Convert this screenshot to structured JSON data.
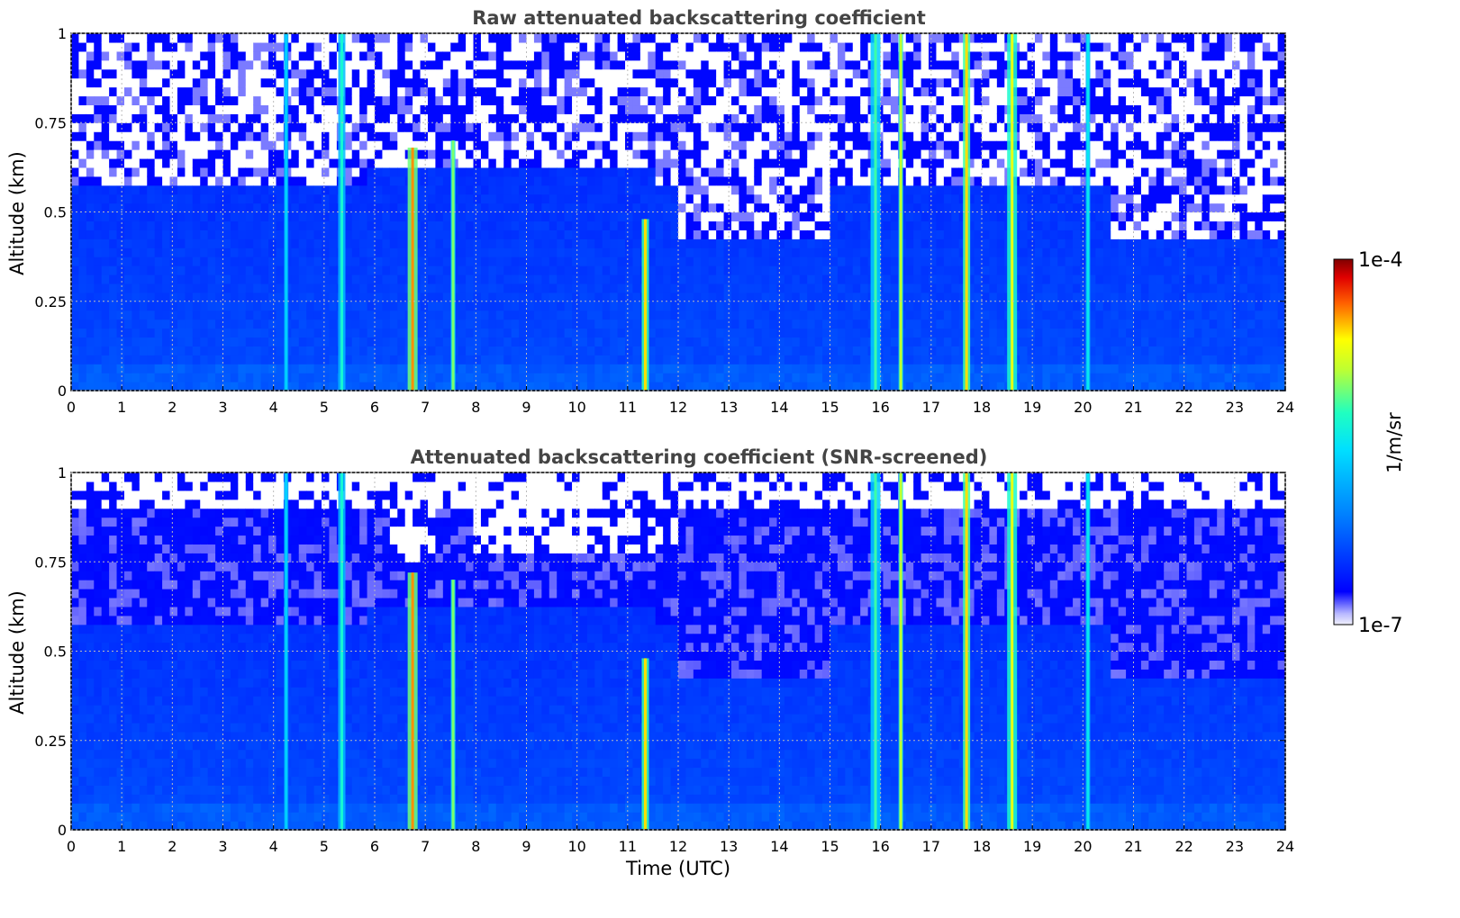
{
  "chart_data": [
    {
      "type": "heatmap",
      "title": "Raw attenuated backscattering coefficient",
      "xlabel": "",
      "ylabel": "Altitude (km)",
      "xlim": [
        0,
        24
      ],
      "ylim": [
        0,
        1
      ],
      "x_ticks": [
        "0",
        "1",
        "2",
        "3",
        "4",
        "5",
        "6",
        "7",
        "8",
        "9",
        "10",
        "11",
        "12",
        "13",
        "14",
        "15",
        "16",
        "17",
        "18",
        "19",
        "20",
        "21",
        "22",
        "23",
        "24"
      ],
      "y_ticks": [
        "0",
        "0.25",
        "0.5",
        "0.75",
        "1"
      ],
      "y_tick_values": [
        0,
        0.25,
        0.5,
        0.75,
        1
      ],
      "grid": true,
      "screened": false,
      "cloud_events": [
        {
          "time": 4.25,
          "top": 1.0,
          "peak": 0.45
        },
        {
          "time": 5.35,
          "top": 1.0,
          "peak": 0.55
        },
        {
          "time": 6.75,
          "top": 0.68,
          "peak": 0.85
        },
        {
          "time": 7.55,
          "top": 0.7,
          "peak": 0.65
        },
        {
          "time": 11.35,
          "top": 0.48,
          "peak": 0.8
        },
        {
          "time": 15.9,
          "top": 1.0,
          "peak": 0.6
        },
        {
          "time": 16.4,
          "top": 1.0,
          "peak": 0.7
        },
        {
          "time": 17.7,
          "top": 1.0,
          "peak": 0.8
        },
        {
          "time": 18.6,
          "top": 1.0,
          "peak": 0.75
        },
        {
          "time": 20.1,
          "top": 1.0,
          "peak": 0.5
        }
      ]
    },
    {
      "type": "heatmap",
      "title": "Attenuated backscattering coefficient (SNR-screened)",
      "xlabel": "Time (UTC)",
      "ylabel": "Altitude (km)",
      "xlim": [
        0,
        24
      ],
      "ylim": [
        0,
        1
      ],
      "x_ticks": [
        "0",
        "1",
        "2",
        "3",
        "4",
        "5",
        "6",
        "7",
        "8",
        "9",
        "10",
        "11",
        "12",
        "13",
        "14",
        "15",
        "16",
        "17",
        "18",
        "19",
        "20",
        "21",
        "22",
        "23",
        "24"
      ],
      "y_ticks": [
        "0",
        "0.25",
        "0.5",
        "0.75",
        "1"
      ],
      "y_tick_values": [
        0,
        0.25,
        0.5,
        0.75,
        1
      ],
      "grid": true,
      "screened": true,
      "cloud_events": [
        {
          "time": 4.25,
          "top": 1.0,
          "peak": 0.45
        },
        {
          "time": 5.35,
          "top": 1.0,
          "peak": 0.55
        },
        {
          "time": 6.75,
          "top": 0.72,
          "peak": 0.85
        },
        {
          "time": 7.55,
          "top": 0.7,
          "peak": 0.65
        },
        {
          "time": 11.35,
          "top": 0.48,
          "peak": 0.8
        },
        {
          "time": 15.9,
          "top": 1.0,
          "peak": 0.6
        },
        {
          "time": 16.4,
          "top": 1.0,
          "peak": 0.7
        },
        {
          "time": 17.7,
          "top": 1.0,
          "peak": 0.8
        },
        {
          "time": 18.6,
          "top": 1.0,
          "peak": 0.75
        },
        {
          "time": 20.1,
          "top": 1.0,
          "peak": 0.5
        }
      ]
    }
  ],
  "colorbar": {
    "label": "1/m/sr",
    "max_label": "1e-4",
    "min_label": "1e-7",
    "colormap": "jet",
    "colors": [
      "#f2f2fb",
      "#0000ff",
      "#00a0ff",
      "#00ffc8",
      "#ffff00",
      "#ff6000",
      "#800000"
    ]
  }
}
